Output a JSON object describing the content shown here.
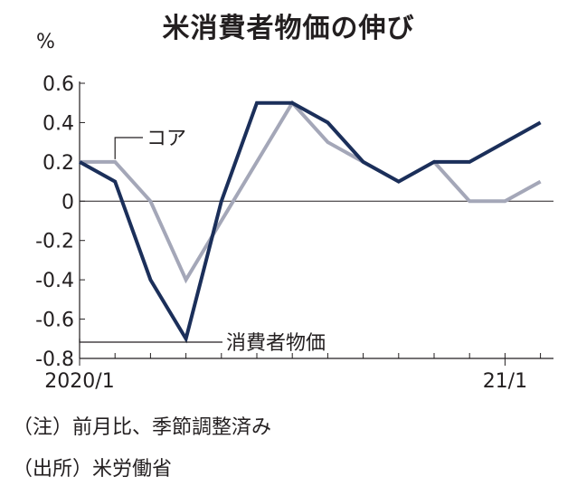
{
  "chart_data": {
    "type": "line",
    "title": "米消費者物価の伸び",
    "unit": "%",
    "x": [
      "2020/1",
      "2020/2",
      "2020/3",
      "2020/4",
      "2020/5",
      "2020/6",
      "2020/7",
      "2020/8",
      "2020/9",
      "2020/10",
      "2020/11",
      "2020/12",
      "21/1",
      "21/2"
    ],
    "x_tick_labels": [
      {
        "x": "2020/1",
        "label": "2020/1"
      },
      {
        "x": "21/1",
        "label": "21/1"
      }
    ],
    "y_ticks": [
      -0.8,
      -0.6,
      -0.4,
      -0.2,
      0,
      0.2,
      0.4,
      0.6
    ],
    "y_tick_labels": [
      "-0.8",
      "-0.6",
      "-0.4",
      "-0.2",
      "0",
      "0.2",
      "0.4",
      "0.6"
    ],
    "ylim": [
      -0.8,
      0.6
    ],
    "series": [
      {
        "name": "消費者物価",
        "color": "#1b2f5a",
        "values": [
          0.2,
          0.1,
          -0.4,
          -0.7,
          0.0,
          0.5,
          0.5,
          0.4,
          0.2,
          0.1,
          0.2,
          0.2,
          0.3,
          0.4
        ]
      },
      {
        "name": "コア",
        "color": "#a4a7b8",
        "values": [
          0.2,
          0.2,
          0.0,
          -0.4,
          -0.1,
          0.2,
          0.5,
          0.3,
          0.2,
          0.1,
          0.2,
          0.0,
          0.0,
          0.1
        ]
      }
    ],
    "annotations": [
      "コア",
      "消費者物価"
    ]
  },
  "notes": [
    "（注）前月比、季節調整済み",
    "（出所）米労働省"
  ]
}
